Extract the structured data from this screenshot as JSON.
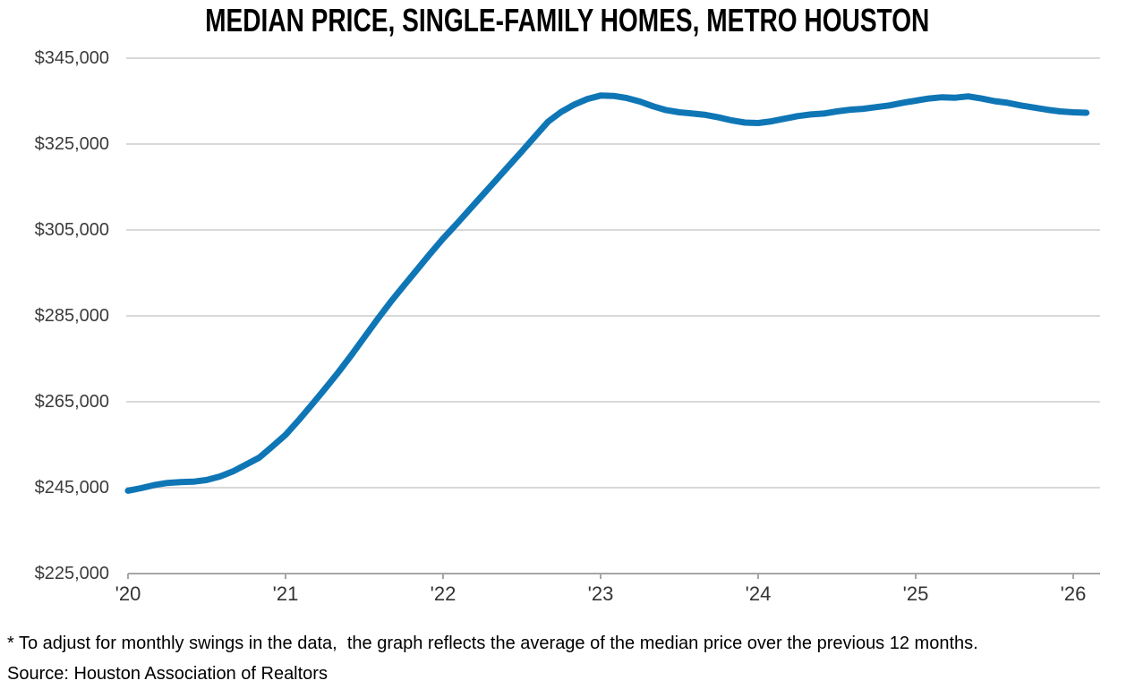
{
  "title": "MEDIAN PRICE, SINGLE-FAMILY HOMES, METRO HOUSTON",
  "footnote": "* To adjust for monthly swings in the data,  the graph reflects the average of the median price over the previous 12 months.",
  "source": "Source: Houston Association of Realtors",
  "colors": {
    "line": "#0F76B6",
    "gridline": "#D9D9D9",
    "axis": "#A6A6A6",
    "tick": "#A6A6A6",
    "label": "#3B3B3B",
    "title": "#000000"
  },
  "chart_data": {
    "type": "line",
    "title": "MEDIAN PRICE, SINGLE-FAMILY HOMES, METRO HOUSTON",
    "xlabel": "",
    "ylabel": "",
    "grid": "horizontal",
    "legend": "none",
    "ylim": [
      225000,
      345000
    ],
    "ytick_values": [
      345000,
      325000,
      305000,
      285000,
      265000,
      245000,
      225000
    ],
    "ytick_labels": [
      "$345,000",
      "$325,000",
      "$305,000",
      "$285,000",
      "$265,000",
      "$245,000",
      "$225,000"
    ],
    "xtick_labels": [
      "'20",
      "'21",
      "'22",
      "'23",
      "'24",
      "'25",
      "'26"
    ],
    "xtick_years": [
      2020,
      2021,
      2022,
      2023,
      2024,
      2025,
      2026
    ],
    "series": [
      {
        "name": "median-price-12-month-average",
        "start": "2020-01",
        "frequency": "monthly",
        "values": [
          244300,
          244900,
          245600,
          246100,
          246300,
          246400,
          246800,
          247600,
          248800,
          250400,
          252000,
          254600,
          257300,
          260700,
          264300,
          268000,
          271800,
          275800,
          280000,
          284200,
          288200,
          292000,
          295700,
          299400,
          303000,
          306300,
          309700,
          313100,
          316500,
          319900,
          323300,
          326800,
          330200,
          332500,
          334200,
          335500,
          336300,
          336200,
          335700,
          334900,
          333800,
          332900,
          332400,
          332100,
          331800,
          331200,
          330500,
          330000,
          329900,
          330300,
          330900,
          331500,
          331900,
          332100,
          332600,
          333000,
          333200,
          333600,
          334000,
          334600,
          335100,
          335600,
          335900,
          335800,
          336100,
          335600,
          335000,
          334600,
          334000,
          333500,
          333000,
          332600,
          332400,
          332300
        ]
      }
    ]
  }
}
